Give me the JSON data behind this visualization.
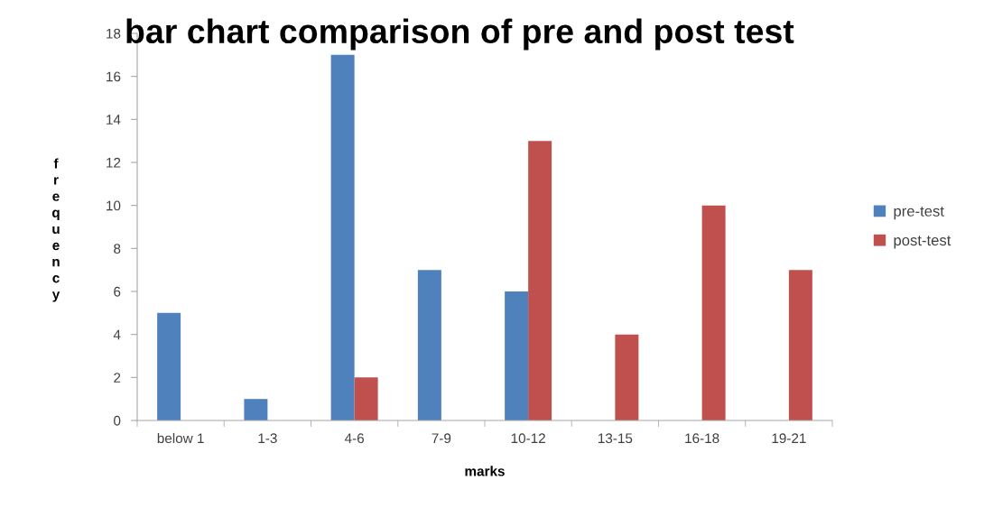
{
  "chart_data": {
    "type": "bar",
    "title": "bar chart comparison of pre and post test",
    "xlabel": "marks",
    "ylabel": "frequency",
    "categories": [
      "below 1",
      "1-3",
      "4-6",
      "7-9",
      "10-12",
      "13-15",
      "16-18",
      "19-21"
    ],
    "series": [
      {
        "name": "pre-test",
        "color": "#4f81bd",
        "values": [
          5,
          1,
          17,
          7,
          6,
          null,
          null,
          null
        ]
      },
      {
        "name": "post-test",
        "color": "#c0504d",
        "values": [
          null,
          null,
          2,
          null,
          13,
          4,
          10,
          7
        ]
      }
    ],
    "ylim": [
      0,
      18
    ],
    "yticks": [
      0,
      2,
      4,
      6,
      8,
      10,
      12,
      14,
      16,
      18
    ],
    "grid": false,
    "legend": "right"
  }
}
